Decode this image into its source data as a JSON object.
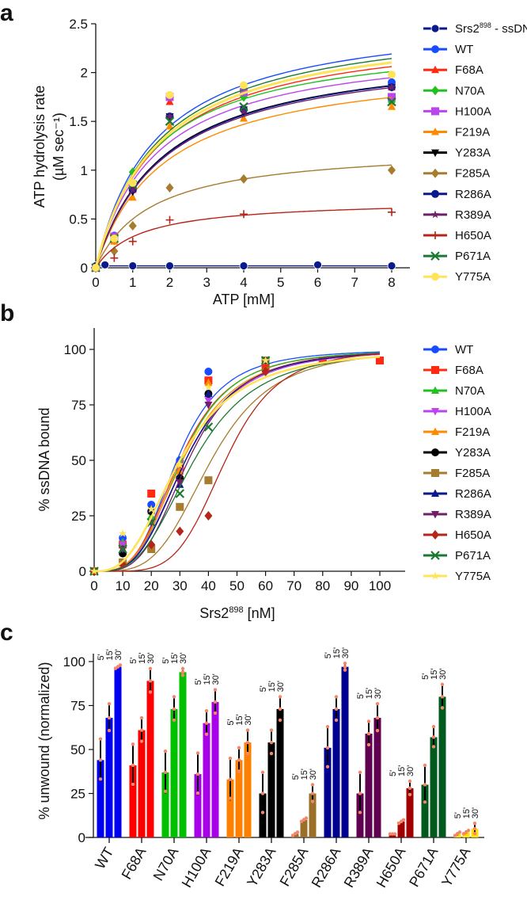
{
  "chart_data": [
    {
      "panel": "a",
      "type": "scatter",
      "ylabel": [
        "ATP hydrolysis rate",
        "(µM sec⁻¹)"
      ],
      "xlabel": "ATP [mM]",
      "xlim": [
        0,
        8.5
      ],
      "ylim": [
        0,
        2.5
      ],
      "xticks": [
        0,
        1,
        2,
        3,
        4,
        5,
        6,
        7,
        8
      ],
      "yticks": [
        0,
        0.5,
        1,
        1.5,
        2,
        2.5
      ],
      "ytick_labels": [
        "0",
        "0.5",
        "1",
        "1.5",
        "2",
        "2.5"
      ],
      "legend_position": "right",
      "fit": "michaelis-menten",
      "series": [
        {
          "name": "Srs2",
          "name_sup": "898",
          "name_suffix": " - ssDNA",
          "color": "#0a1a8c",
          "marker": "circle-open",
          "x": [
            0,
            0.25,
            1,
            2,
            4,
            6,
            8
          ],
          "y": [
            0.02,
            0.03,
            0.02,
            0.02,
            0.02,
            0.03,
            0.02
          ],
          "fit_flat": 0.02
        },
        {
          "name": "WT",
          "color": "#1a4cff",
          "marker": "circle",
          "x": [
            0,
            0.5,
            1,
            2,
            4,
            8
          ],
          "y": [
            0,
            0.33,
            0.85,
            1.75,
            1.8,
            1.9
          ],
          "vmax": 2.64,
          "km": 1.64
        },
        {
          "name": "F68A",
          "color": "#ff2a10",
          "marker": "triangle",
          "x": [
            0,
            0.5,
            1,
            2,
            4,
            8
          ],
          "y": [
            0,
            0.3,
            0.8,
            1.7,
            1.8,
            1.85
          ],
          "vmax": 2.5,
          "km": 1.7
        },
        {
          "name": "N70A",
          "color": "#22c020",
          "marker": "diamond",
          "x": [
            0,
            0.5,
            1,
            2,
            4,
            8
          ],
          "y": [
            0,
            0.28,
            0.98,
            1.75,
            1.75,
            1.7
          ],
          "vmax": 2.4,
          "km": 1.55
        },
        {
          "name": "H100A",
          "color": "#bb44ee",
          "marker": "square",
          "x": [
            0,
            0.5,
            1,
            2,
            4,
            8
          ],
          "y": [
            0,
            0.32,
            0.82,
            1.75,
            1.8,
            1.75
          ],
          "vmax": 2.35,
          "km": 1.65
        },
        {
          "name": "F219A",
          "color": "#ff8a00",
          "marker": "triangle",
          "x": [
            0,
            0.5,
            1,
            2,
            4,
            8
          ],
          "y": [
            0,
            0.27,
            0.72,
            1.45,
            1.53,
            1.65
          ],
          "vmax": 2.15,
          "km": 1.85
        },
        {
          "name": "Y283A",
          "color": "#000000",
          "marker": "triangle-down",
          "x": [
            0,
            0.5,
            1,
            2,
            4,
            8
          ],
          "y": [
            0,
            0.3,
            0.78,
            1.55,
            1.62,
            1.85
          ],
          "vmax": 2.3,
          "km": 1.85
        },
        {
          "name": "F285A",
          "color": "#a67c2e",
          "marker": "diamond",
          "x": [
            0,
            0.5,
            1,
            2,
            4,
            8
          ],
          "y": [
            0,
            0.17,
            0.43,
            0.82,
            0.91,
            1.0
          ],
          "vmax": 1.25,
          "km": 1.5
        },
        {
          "name": "R286A",
          "color": "#0a1a8c",
          "marker": "circle",
          "x": [
            0,
            0.5,
            1,
            2,
            4,
            8
          ],
          "y": [
            0,
            0.3,
            0.8,
            1.55,
            1.62,
            1.85
          ],
          "vmax": 2.3,
          "km": 1.88
        },
        {
          "name": "R389A",
          "color": "#70206a",
          "marker": "star",
          "x": [
            0,
            0.5,
            1,
            2,
            4,
            8
          ],
          "y": [
            0,
            0.3,
            0.8,
            1.55,
            1.6,
            1.85
          ],
          "vmax": 2.28,
          "km": 1.88
        },
        {
          "name": "H650A",
          "color": "#b5251a",
          "marker": "plus",
          "x": [
            0,
            0.5,
            1,
            2,
            4,
            8
          ],
          "y": [
            0,
            0.1,
            0.27,
            0.49,
            0.55,
            0.57
          ],
          "vmax": 0.7,
          "km": 1.2
        },
        {
          "name": "P671A",
          "color": "#1a7a30",
          "marker": "x",
          "x": [
            0,
            0.5,
            1,
            2,
            4,
            8
          ],
          "y": [
            0,
            0.3,
            0.85,
            1.5,
            1.65,
            1.7
          ],
          "vmax": 2.6,
          "km": 1.7
        },
        {
          "name": "Y775A",
          "color": "#ffe45a",
          "marker": "circle",
          "x": [
            0,
            0.5,
            1,
            2,
            4,
            8
          ],
          "y": [
            0,
            0.3,
            0.87,
            1.77,
            1.87,
            1.98
          ],
          "vmax": 2.55,
          "km": 1.7
        }
      ]
    },
    {
      "panel": "b",
      "type": "scatter",
      "ylabel": "% ssDNA  bound",
      "xlabel": "Srs2",
      "xlabel_sup": "898",
      "xlabel_suffix": " [nM]",
      "xlim": [
        0,
        108
      ],
      "ylim": [
        0,
        110
      ],
      "xticks": [
        0,
        10,
        20,
        30,
        40,
        50,
        60,
        70,
        80,
        90,
        100
      ],
      "yticks": [
        0,
        25,
        50,
        75,
        100
      ],
      "legend_position": "right",
      "fit": "hill",
      "series": [
        {
          "name": "WT",
          "color": "#1a4cff",
          "marker": "circle",
          "x": [
            0,
            10,
            20,
            30,
            40,
            60,
            80,
            100
          ],
          "y": [
            0,
            15,
            30,
            50,
            90,
            95,
            95,
            95
          ],
          "k": 29,
          "n": 3.6
        },
        {
          "name": "F68A",
          "color": "#ff2a10",
          "marker": "square",
          "x": [
            0,
            10,
            20,
            30,
            40,
            60,
            80,
            100
          ],
          "y": [
            0,
            12,
            35,
            47,
            86,
            92,
            95,
            95
          ],
          "k": 30,
          "n": 3.4
        },
        {
          "name": "N70A",
          "color": "#22c020",
          "marker": "triangle",
          "x": [
            0,
            10,
            20,
            30,
            40,
            60
          ],
          "y": [
            0,
            13,
            25,
            45,
            80,
            95
          ],
          "k": 30.5,
          "n": 3.5
        },
        {
          "name": "H100A",
          "color": "#bb44ee",
          "marker": "triangle-down",
          "x": [
            0,
            10,
            20,
            30,
            40,
            60
          ],
          "y": [
            0,
            12,
            22,
            45,
            77,
            95
          ],
          "k": 32,
          "n": 3.3
        },
        {
          "name": "F219A",
          "color": "#ff8a00",
          "marker": "triangle",
          "x": [
            0,
            10,
            20,
            30,
            40,
            60
          ],
          "y": [
            0,
            10,
            27,
            45,
            85,
            95
          ],
          "k": 31,
          "n": 3.3
        },
        {
          "name": "Y283A",
          "color": "#000000",
          "marker": "circle",
          "x": [
            0,
            10,
            20,
            30,
            40,
            60
          ],
          "y": [
            0,
            8,
            27,
            42,
            80,
            95
          ],
          "k": 32,
          "n": 3.4
        },
        {
          "name": "F285A",
          "color": "#a67c2e",
          "marker": "square",
          "x": [
            0,
            10,
            20,
            30,
            40,
            60
          ],
          "y": [
            0,
            4,
            10,
            29,
            41,
            95
          ],
          "k": 41,
          "n": 3.8
        },
        {
          "name": "R286A",
          "color": "#0a1a8c",
          "marker": "triangle",
          "x": [
            0,
            10,
            20,
            30,
            40,
            60
          ],
          "y": [
            0,
            10,
            28,
            39,
            80,
            95
          ],
          "k": 32,
          "n": 3.4
        },
        {
          "name": "R389A",
          "color": "#70206a",
          "marker": "triangle-down",
          "x": [
            0,
            10,
            20,
            30,
            40,
            60
          ],
          "y": [
            0,
            10,
            22,
            40,
            75,
            95
          ],
          "k": 33,
          "n": 3.6
        },
        {
          "name": "H650A",
          "color": "#b5251a",
          "marker": "diamond",
          "x": [
            0,
            10,
            20,
            30,
            40,
            60
          ],
          "y": [
            0,
            3,
            12,
            18,
            25,
            90
          ],
          "k": 46,
          "n": 5
        },
        {
          "name": "P671A",
          "color": "#1a7a30",
          "marker": "x",
          "x": [
            0,
            10,
            20,
            30,
            40,
            60
          ],
          "y": [
            0,
            10,
            22,
            35,
            65,
            95
          ],
          "k": 35,
          "n": 3.2
        },
        {
          "name": "Y775A",
          "color": "#ffe45a",
          "marker": "star",
          "x": [
            0,
            10,
            20,
            30,
            40,
            60
          ],
          "y": [
            0,
            17,
            28,
            48,
            83,
            95
          ],
          "k": 30,
          "n": 2.8
        }
      ]
    },
    {
      "panel": "c",
      "type": "bar",
      "ylabel": "% unwound (normalized)",
      "ylim": [
        0,
        100
      ],
      "yticks": [
        0,
        25,
        50,
        75,
        100
      ],
      "time_labels": [
        "5'",
        "15'",
        "30'"
      ],
      "categories": [
        "WT",
        "F68A",
        "N70A",
        "H100A",
        "F219A",
        "Y283A",
        "F285A",
        "R286A",
        "R389A",
        "H650A",
        "P671A",
        "Y775A"
      ],
      "colors": [
        "#0000f0",
        "#ff0000",
        "#00c000",
        "#a800e8",
        "#ff8000",
        "#000000",
        "#9a7028",
        "#000090",
        "#600050",
        "#a00000",
        "#005a1e",
        "#ffe000"
      ],
      "series": [
        {
          "name": "5'",
          "values": [
            44,
            41,
            37,
            36,
            33,
            25,
            2,
            51,
            25,
            2,
            30,
            2
          ],
          "err": [
            12,
            12,
            12,
            12,
            12,
            12,
            1,
            12,
            12,
            0,
            11,
            1
          ]
        },
        {
          "name": "15'",
          "values": [
            68,
            61,
            73,
            65,
            44,
            54,
            10,
            73,
            59,
            9,
            57,
            3
          ],
          "err": [
            8,
            7,
            7,
            7,
            7,
            7,
            1,
            7,
            7,
            1,
            6,
            1
          ]
        },
        {
          "name": "30'",
          "values": [
            97,
            89,
            94,
            77,
            54,
            73,
            25,
            97,
            68,
            28,
            80,
            5
          ],
          "err": [
            1,
            7,
            2,
            7,
            7,
            7,
            5,
            2,
            8,
            4,
            7,
            3
          ]
        }
      ]
    }
  ],
  "panels": {
    "a": "a",
    "b": "b",
    "c": "c"
  }
}
